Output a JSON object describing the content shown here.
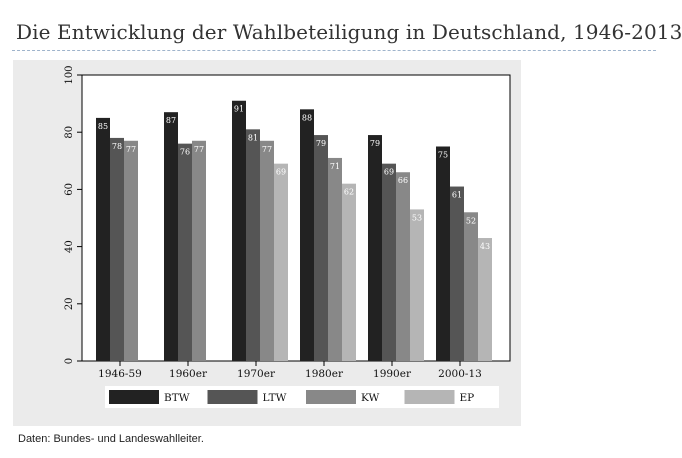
{
  "title": "Die Entwicklung der Wahlbeteiligung in Deutschland, 1946-2013",
  "source_note": "Daten: Bundes- und Landeswahlleiter.",
  "colors": {
    "panel_background": "#ebebeb",
    "plot_background": "#ffffff",
    "series": [
      "#222222",
      "#555555",
      "#888888",
      "#b5b5b5"
    ],
    "label_on_dark": "#ffffff",
    "label_on_light": "#ffffff"
  },
  "chart_data": {
    "type": "bar",
    "title": "",
    "xlabel": "",
    "ylabel": "",
    "categories": [
      "1946-59",
      "1960er",
      "1970er",
      "1980er",
      "1990er",
      "2000-13"
    ],
    "ylim": [
      0,
      100
    ],
    "yticks": [
      0,
      20,
      40,
      60,
      80,
      100
    ],
    "grid": false,
    "legend_position": "bottom",
    "series": [
      {
        "name": "BTW",
        "values": [
          85,
          87,
          91,
          88,
          79,
          75
        ],
        "labels": [
          "85",
          "87",
          "91",
          "88",
          "79",
          "75"
        ]
      },
      {
        "name": "LTW",
        "values": [
          78,
          76,
          81,
          79,
          69,
          61
        ],
        "labels": [
          "78",
          "76",
          "81",
          "79",
          "69",
          "61"
        ]
      },
      {
        "name": "KW",
        "values": [
          77,
          77,
          77,
          71,
          66,
          52
        ],
        "labels": [
          "77",
          "77",
          "77",
          "71",
          "66",
          "52"
        ]
      },
      {
        "name": "EP",
        "values": [
          null,
          null,
          69,
          62,
          53,
          43
        ],
        "labels": [
          "",
          "",
          "69",
          "62",
          "53",
          "43"
        ]
      }
    ]
  }
}
